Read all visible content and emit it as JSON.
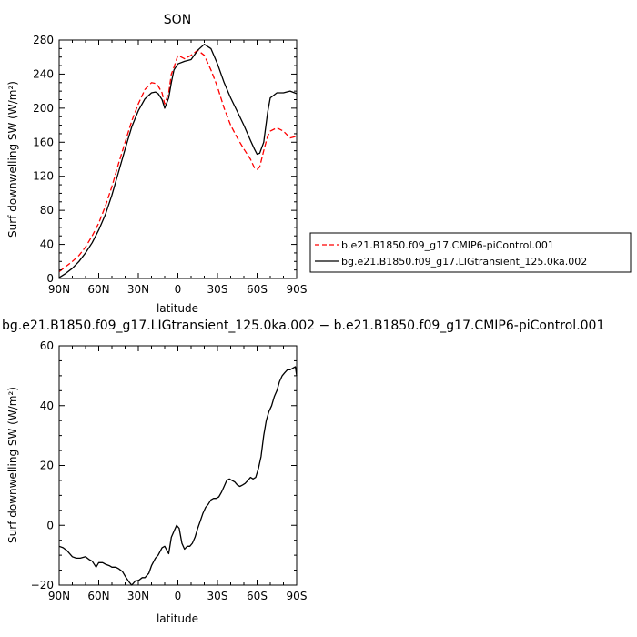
{
  "chart_data": [
    {
      "type": "line",
      "title": "SON",
      "xlabel": "latitude",
      "ylabel": "Surf downwelling SW (W/m²)",
      "x_ticks": [
        "90N",
        "60N",
        "30N",
        "0",
        "30S",
        "60S",
        "90S"
      ],
      "y_ticks": [
        "0",
        "40",
        "80",
        "120",
        "160",
        "200",
        "240",
        "280"
      ],
      "xlim": [
        90,
        -90
      ],
      "ylim": [
        0,
        280
      ],
      "legend_position": "right",
      "series": [
        {
          "name": "b.e21.B1850.f09_g17.CMIP6-piControl.001",
          "color": "#ff0000",
          "dash": "dashed",
          "x": [
            90,
            85,
            80,
            75,
            70,
            65,
            60,
            55,
            50,
            45,
            40,
            35,
            30,
            25,
            20,
            17,
            15,
            12,
            10,
            7,
            5,
            3,
            0,
            -5,
            -10,
            -15,
            -20,
            -25,
            -30,
            -35,
            -40,
            -45,
            -50,
            -55,
            -58,
            -60,
            -62,
            -65,
            -68,
            -70,
            -75,
            -80,
            -85,
            -90
          ],
          "y": [
            8,
            14,
            20,
            27,
            37,
            50,
            65,
            85,
            108,
            135,
            160,
            185,
            205,
            222,
            230,
            229,
            226,
            218,
            205,
            218,
            240,
            248,
            262,
            258,
            262,
            268,
            262,
            245,
            225,
            200,
            180,
            165,
            152,
            140,
            130,
            128,
            131,
            150,
            167,
            173,
            177,
            173,
            165,
            167
          ]
        },
        {
          "name": "bg.e21.B1850.f09_g17.LIGtransient_125.0ka.002",
          "color": "#000000",
          "dash": "solid",
          "x": [
            90,
            85,
            80,
            75,
            70,
            65,
            60,
            55,
            50,
            45,
            40,
            35,
            30,
            25,
            20,
            17,
            15,
            12,
            10,
            7,
            5,
            3,
            0,
            -5,
            -10,
            -15,
            -20,
            -25,
            -30,
            -35,
            -40,
            -45,
            -50,
            -55,
            -58,
            -60,
            -62,
            -65,
            -68,
            -70,
            -75,
            -80,
            -85,
            -90
          ],
          "y": [
            1,
            6,
            12,
            20,
            30,
            42,
            57,
            75,
            98,
            125,
            152,
            178,
            197,
            211,
            218,
            219,
            217,
            210,
            200,
            212,
            230,
            245,
            252,
            255,
            257,
            268,
            275,
            270,
            252,
            230,
            212,
            196,
            180,
            162,
            152,
            146,
            147,
            160,
            195,
            212,
            218,
            218,
            220,
            217
          ]
        }
      ]
    },
    {
      "type": "line",
      "title": "bg.e21.B1850.f09_g17.LIGtransient_125.0ka.002 − b.e21.B1850.f09_g17.CMIP6-piControl.001",
      "xlabel": "latitude",
      "ylabel": "Surf downwelling SW (W/m²)",
      "x_ticks": [
        "90N",
        "60N",
        "30N",
        "0",
        "30S",
        "60S",
        "90S"
      ],
      "y_ticks": [
        "−20",
        "0",
        "20",
        "40",
        "60"
      ],
      "xlim": [
        90,
        -90
      ],
      "ylim": [
        -20,
        60
      ],
      "series": [
        {
          "color": "#000000",
          "dash": "solid",
          "x": [
            90,
            87,
            84,
            80,
            77,
            74,
            70,
            67,
            65,
            62,
            60,
            57,
            55,
            52,
            50,
            47,
            45,
            42,
            40,
            37,
            35,
            32,
            30,
            27,
            25,
            22,
            20,
            17,
            15,
            12,
            10,
            7,
            5,
            3,
            1,
            -1,
            -3,
            -5,
            -7,
            -9,
            -11,
            -13,
            -15,
            -17,
            -19,
            -21,
            -23,
            -25,
            -27,
            -29,
            -31,
            -33,
            -35,
            -37,
            -39,
            -41,
            -43,
            -45,
            -47,
            -49,
            -51,
            -53,
            -55,
            -57,
            -59,
            -61,
            -63,
            -65,
            -67,
            -69,
            -71,
            -73,
            -75,
            -77,
            -79,
            -81,
            -83,
            -85,
            -87,
            -89,
            -90
          ],
          "y": [
            -7,
            -7.5,
            -8.5,
            -10.5,
            -11,
            -11,
            -10.5,
            -11.5,
            -12,
            -14,
            -12.5,
            -12.5,
            -13,
            -13.5,
            -14,
            -14,
            -14.5,
            -15.5,
            -17,
            -19,
            -20,
            -18.5,
            -18.5,
            -17.5,
            -17.5,
            -16,
            -13.5,
            -11,
            -10,
            -7.5,
            -7,
            -9.5,
            -4,
            -2,
            0,
            -1,
            -6,
            -8,
            -7,
            -7,
            -6,
            -4,
            -1,
            1.5,
            4,
            6,
            7,
            8.5,
            9,
            9,
            9.5,
            11,
            13,
            15,
            15.5,
            15,
            14.5,
            13.5,
            13,
            13.5,
            14,
            15,
            16,
            15.5,
            16,
            19,
            23,
            30,
            35,
            38,
            40,
            43,
            45,
            48,
            50,
            51,
            52,
            52,
            52.5,
            53,
            50
          ]
        }
      ]
    }
  ]
}
